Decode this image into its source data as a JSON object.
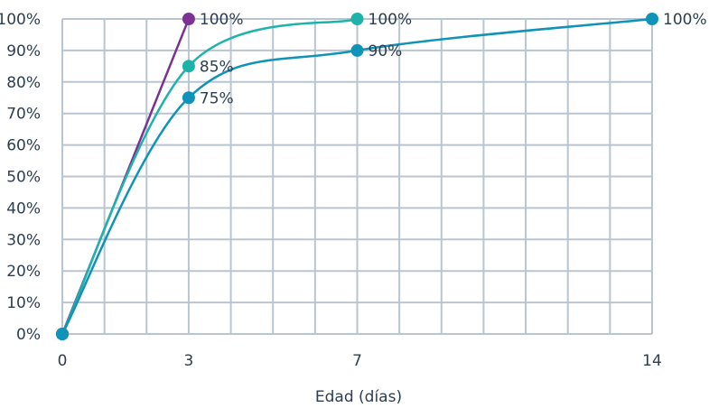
{
  "chart_data": {
    "type": "line",
    "title": "",
    "xlabel": "Edad (días)",
    "ylabel": "",
    "x_ticks": [
      0,
      3,
      7,
      14
    ],
    "y_ticks": [
      "0%",
      "10%",
      "20%",
      "30%",
      "40%",
      "50%",
      "60%",
      "70%",
      "80%",
      "90%",
      "100%"
    ],
    "xlim": [
      0,
      14
    ],
    "ylim": [
      0,
      100
    ],
    "grid": true,
    "legend": "none",
    "series": [
      {
        "color": "#7b3294",
        "points": [
          {
            "x": 0,
            "y": 0,
            "label": ""
          },
          {
            "x": 3,
            "y": 100,
            "label": "100%"
          }
        ]
      },
      {
        "color": "#1db3aa",
        "points": [
          {
            "x": 0,
            "y": 0,
            "label": ""
          },
          {
            "x": 3,
            "y": 85,
            "label": "85%"
          },
          {
            "x": 7,
            "y": 100,
            "label": "100%"
          }
        ]
      },
      {
        "color": "#0f93b8",
        "points": [
          {
            "x": 0,
            "y": 0,
            "label": ""
          },
          {
            "x": 3,
            "y": 75,
            "label": "75%"
          },
          {
            "x": 7,
            "y": 90,
            "label": "90%"
          },
          {
            "x": 14,
            "y": 100,
            "label": "100%"
          }
        ]
      }
    ]
  }
}
